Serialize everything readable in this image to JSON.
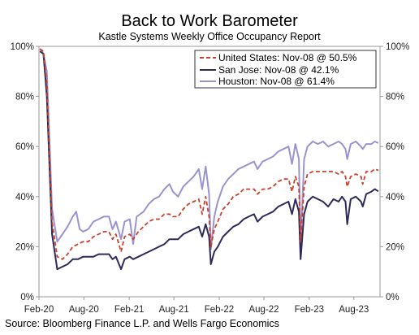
{
  "chart_data": {
    "type": "line",
    "title": "Back to Work Barometer",
    "subtitle": "Kastle Systems Weekly Office Occupancy Report",
    "source": "Source: Bloomberg Finance L.P. and Wells Fargo Economics",
    "x_range": [
      "2020-02-01",
      "2023-11-15"
    ],
    "ylim": [
      0,
      100
    ],
    "y_ticks": [
      0,
      20,
      40,
      60,
      80,
      100
    ],
    "y_tick_labels": [
      "0%",
      "20%",
      "40%",
      "60%",
      "80%",
      "100%"
    ],
    "x_ticks": [
      "2020-02-01",
      "2020-08-01",
      "2021-02-01",
      "2021-08-01",
      "2022-02-01",
      "2022-08-01",
      "2023-02-01",
      "2023-08-01"
    ],
    "x_tick_labels": [
      "Feb-20",
      "Aug-20",
      "Feb-21",
      "Aug-21",
      "Feb-22",
      "Aug-22",
      "Feb-23",
      "Aug-23"
    ],
    "grid": false,
    "legend_position": "top-right",
    "series": [
      {
        "name": "United States: Nov-08 @ 50.5%",
        "color": "#c8412b",
        "style": "dashed",
        "points": [
          [
            "2020-02-05",
            99
          ],
          [
            "2020-02-19",
            98
          ],
          [
            "2020-03-04",
            85
          ],
          [
            "2020-03-25",
            30
          ],
          [
            "2020-04-15",
            16
          ],
          [
            "2020-05-06",
            15
          ],
          [
            "2020-05-27",
            17
          ],
          [
            "2020-06-17",
            20
          ],
          [
            "2020-07-08",
            21
          ],
          [
            "2020-07-29",
            22
          ],
          [
            "2020-08-19",
            22
          ],
          [
            "2020-09-09",
            24
          ],
          [
            "2020-09-30",
            25
          ],
          [
            "2020-10-21",
            26
          ],
          [
            "2020-11-11",
            26
          ],
          [
            "2020-11-25",
            23
          ],
          [
            "2020-12-09",
            25
          ],
          [
            "2020-12-30",
            18
          ],
          [
            "2021-01-13",
            24
          ],
          [
            "2021-02-03",
            25
          ],
          [
            "2021-02-17",
            23
          ],
          [
            "2021-03-10",
            26
          ],
          [
            "2021-03-31",
            28
          ],
          [
            "2021-04-21",
            30
          ],
          [
            "2021-05-12",
            31
          ],
          [
            "2021-06-02",
            31
          ],
          [
            "2021-06-23",
            33
          ],
          [
            "2021-07-14",
            33
          ],
          [
            "2021-07-28",
            32
          ],
          [
            "2021-08-18",
            32
          ],
          [
            "2021-09-08",
            35
          ],
          [
            "2021-09-29",
            37
          ],
          [
            "2021-10-20",
            38
          ],
          [
            "2021-11-10",
            39
          ],
          [
            "2021-11-24",
            33
          ],
          [
            "2021-12-08",
            40
          ],
          [
            "2021-12-22",
            32
          ],
          [
            "2021-12-29",
            20
          ],
          [
            "2022-01-12",
            27
          ],
          [
            "2022-01-26",
            30
          ],
          [
            "2022-02-16",
            35
          ],
          [
            "2022-03-09",
            37
          ],
          [
            "2022-03-30",
            40
          ],
          [
            "2022-04-20",
            41
          ],
          [
            "2022-05-11",
            43
          ],
          [
            "2022-06-01",
            43
          ],
          [
            "2022-06-22",
            43
          ],
          [
            "2022-07-06",
            41
          ],
          [
            "2022-07-27",
            43
          ],
          [
            "2022-08-17",
            43
          ],
          [
            "2022-09-07",
            44
          ],
          [
            "2022-09-28",
            46
          ],
          [
            "2022-10-19",
            47
          ],
          [
            "2022-11-09",
            47
          ],
          [
            "2022-11-23",
            42
          ],
          [
            "2022-12-07",
            48
          ],
          [
            "2022-12-21",
            44
          ],
          [
            "2022-12-28",
            22
          ],
          [
            "2023-01-11",
            44
          ],
          [
            "2023-01-25",
            49
          ],
          [
            "2023-02-15",
            50
          ],
          [
            "2023-03-08",
            50
          ],
          [
            "2023-03-29",
            50
          ],
          [
            "2023-04-19",
            50
          ],
          [
            "2023-05-10",
            50
          ],
          [
            "2023-05-31",
            49
          ],
          [
            "2023-06-14",
            50
          ],
          [
            "2023-06-28",
            48
          ],
          [
            "2023-07-05",
            44
          ],
          [
            "2023-07-19",
            48
          ],
          [
            "2023-08-09",
            49
          ],
          [
            "2023-08-30",
            48
          ],
          [
            "2023-09-06",
            45
          ],
          [
            "2023-09-20",
            50
          ],
          [
            "2023-10-11",
            50
          ],
          [
            "2023-10-25",
            51
          ],
          [
            "2023-11-08",
            50.5
          ]
        ]
      },
      {
        "name": "San Jose: Nov-08 @ 42.1%",
        "color": "#2e2a5a",
        "style": "solid",
        "points": [
          [
            "2020-02-05",
            98
          ],
          [
            "2020-02-19",
            97
          ],
          [
            "2020-03-04",
            80
          ],
          [
            "2020-03-25",
            25
          ],
          [
            "2020-04-15",
            11
          ],
          [
            "2020-05-06",
            12
          ],
          [
            "2020-05-27",
            13
          ],
          [
            "2020-06-17",
            15
          ],
          [
            "2020-07-08",
            15
          ],
          [
            "2020-07-29",
            16
          ],
          [
            "2020-08-19",
            16
          ],
          [
            "2020-09-09",
            16
          ],
          [
            "2020-09-30",
            17
          ],
          [
            "2020-10-21",
            17
          ],
          [
            "2020-11-11",
            17
          ],
          [
            "2020-11-25",
            15
          ],
          [
            "2020-12-09",
            16
          ],
          [
            "2020-12-30",
            11
          ],
          [
            "2021-01-13",
            15
          ],
          [
            "2021-02-03",
            16
          ],
          [
            "2021-02-17",
            15
          ],
          [
            "2021-03-10",
            16
          ],
          [
            "2021-03-31",
            17
          ],
          [
            "2021-04-21",
            18
          ],
          [
            "2021-05-12",
            19
          ],
          [
            "2021-06-02",
            20
          ],
          [
            "2021-06-23",
            21
          ],
          [
            "2021-07-14",
            23
          ],
          [
            "2021-07-28",
            23
          ],
          [
            "2021-08-18",
            23
          ],
          [
            "2021-09-08",
            25
          ],
          [
            "2021-09-29",
            26
          ],
          [
            "2021-10-20",
            27
          ],
          [
            "2021-11-10",
            28
          ],
          [
            "2021-11-24",
            24
          ],
          [
            "2021-12-08",
            29
          ],
          [
            "2021-12-22",
            24
          ],
          [
            "2021-12-29",
            13
          ],
          [
            "2022-01-12",
            18
          ],
          [
            "2022-01-26",
            20
          ],
          [
            "2022-02-16",
            24
          ],
          [
            "2022-03-09",
            26
          ],
          [
            "2022-03-30",
            28
          ],
          [
            "2022-04-20",
            29
          ],
          [
            "2022-05-11",
            31
          ],
          [
            "2022-06-01",
            32
          ],
          [
            "2022-06-22",
            33
          ],
          [
            "2022-07-06",
            30
          ],
          [
            "2022-07-27",
            32
          ],
          [
            "2022-08-17",
            33
          ],
          [
            "2022-09-07",
            34
          ],
          [
            "2022-09-28",
            36
          ],
          [
            "2022-10-19",
            37
          ],
          [
            "2022-11-09",
            38
          ],
          [
            "2022-11-23",
            33
          ],
          [
            "2022-12-07",
            39
          ],
          [
            "2022-12-21",
            34
          ],
          [
            "2022-12-28",
            15
          ],
          [
            "2023-01-11",
            33
          ],
          [
            "2023-01-25",
            38
          ],
          [
            "2023-02-15",
            40
          ],
          [
            "2023-03-08",
            39
          ],
          [
            "2023-03-29",
            38
          ],
          [
            "2023-04-19",
            36
          ],
          [
            "2023-05-10",
            39
          ],
          [
            "2023-05-31",
            38
          ],
          [
            "2023-06-14",
            40
          ],
          [
            "2023-06-28",
            38
          ],
          [
            "2023-07-05",
            29
          ],
          [
            "2023-07-19",
            39
          ],
          [
            "2023-08-09",
            40
          ],
          [
            "2023-08-30",
            38
          ],
          [
            "2023-09-06",
            36
          ],
          [
            "2023-09-20",
            41
          ],
          [
            "2023-10-11",
            42
          ],
          [
            "2023-10-25",
            43
          ],
          [
            "2023-11-08",
            42.1
          ]
        ]
      },
      {
        "name": "Houston: Nov-08 @ 61.4%",
        "color": "#9b93d0",
        "style": "solid",
        "points": [
          [
            "2020-02-05",
            99
          ],
          [
            "2020-02-19",
            97
          ],
          [
            "2020-03-04",
            90
          ],
          [
            "2020-03-25",
            35
          ],
          [
            "2020-04-15",
            22
          ],
          [
            "2020-05-06",
            25
          ],
          [
            "2020-05-27",
            28
          ],
          [
            "2020-06-17",
            32
          ],
          [
            "2020-07-01",
            34
          ],
          [
            "2020-07-15",
            27
          ],
          [
            "2020-07-29",
            26
          ],
          [
            "2020-08-19",
            27
          ],
          [
            "2020-09-09",
            30
          ],
          [
            "2020-09-30",
            31
          ],
          [
            "2020-10-21",
            32
          ],
          [
            "2020-11-11",
            32
          ],
          [
            "2020-11-25",
            27
          ],
          [
            "2020-12-09",
            30
          ],
          [
            "2020-12-30",
            23
          ],
          [
            "2021-01-13",
            30
          ],
          [
            "2021-02-03",
            31
          ],
          [
            "2021-02-17",
            21
          ],
          [
            "2021-03-03",
            32
          ],
          [
            "2021-03-31",
            34
          ],
          [
            "2021-04-21",
            37
          ],
          [
            "2021-05-12",
            39
          ],
          [
            "2021-06-02",
            40
          ],
          [
            "2021-06-23",
            43
          ],
          [
            "2021-07-14",
            45
          ],
          [
            "2021-07-28",
            42
          ],
          [
            "2021-08-18",
            40
          ],
          [
            "2021-09-08",
            44
          ],
          [
            "2021-09-29",
            46
          ],
          [
            "2021-10-20",
            48
          ],
          [
            "2021-11-10",
            51
          ],
          [
            "2021-11-24",
            43
          ],
          [
            "2021-12-08",
            52
          ],
          [
            "2021-12-22",
            41
          ],
          [
            "2021-12-29",
            19
          ],
          [
            "2022-01-12",
            32
          ],
          [
            "2022-01-26",
            38
          ],
          [
            "2022-02-16",
            44
          ],
          [
            "2022-03-09",
            47
          ],
          [
            "2022-03-30",
            49
          ],
          [
            "2022-04-20",
            51
          ],
          [
            "2022-05-11",
            52
          ],
          [
            "2022-06-01",
            53
          ],
          [
            "2022-06-22",
            54
          ],
          [
            "2022-07-06",
            51
          ],
          [
            "2022-07-27",
            54
          ],
          [
            "2022-08-17",
            55
          ],
          [
            "2022-09-07",
            56
          ],
          [
            "2022-09-28",
            58
          ],
          [
            "2022-10-19",
            59
          ],
          [
            "2022-11-09",
            60
          ],
          [
            "2022-11-23",
            53
          ],
          [
            "2022-12-07",
            61
          ],
          [
            "2022-12-21",
            55
          ],
          [
            "2022-12-28",
            20
          ],
          [
            "2023-01-11",
            55
          ],
          [
            "2023-01-25",
            60
          ],
          [
            "2023-02-15",
            62
          ],
          [
            "2023-03-08",
            61
          ],
          [
            "2023-03-29",
            62
          ],
          [
            "2023-04-19",
            60
          ],
          [
            "2023-05-10",
            61
          ],
          [
            "2023-05-31",
            62
          ],
          [
            "2023-06-14",
            61
          ],
          [
            "2023-06-28",
            59
          ],
          [
            "2023-07-05",
            55
          ],
          [
            "2023-07-19",
            61
          ],
          [
            "2023-08-09",
            62
          ],
          [
            "2023-08-30",
            60
          ],
          [
            "2023-09-06",
            59
          ],
          [
            "2023-09-20",
            61
          ],
          [
            "2023-10-11",
            61
          ],
          [
            "2023-10-25",
            62
          ],
          [
            "2023-11-08",
            61.4
          ]
        ]
      }
    ]
  }
}
